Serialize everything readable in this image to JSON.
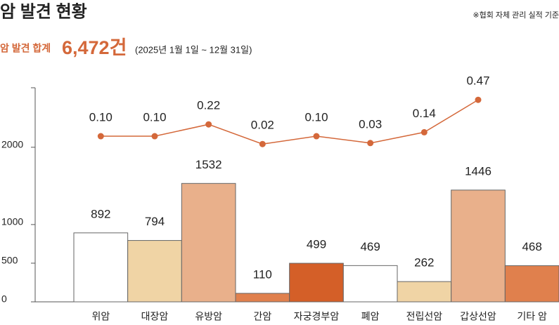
{
  "header": {
    "title": "암 발견 현황",
    "note": "※협회 자체 관리 실적 기준",
    "total_label": "암 발견 합계",
    "total_value": "6,472건",
    "period": "(2025년 1월 1일 ~ 12월 31일)"
  },
  "chart_data": {
    "type": "bar",
    "categories": [
      "위암",
      "대장암",
      "유방암",
      "간암",
      "자궁경부암",
      "폐암",
      "전립선암",
      "갑상선암",
      "기타 암"
    ],
    "values": [
      892,
      794,
      1532,
      110,
      499,
      469,
      262,
      1446,
      468
    ],
    "colors": [
      "#ffffff",
      "#f0d4a5",
      "#e9b08b",
      "#e0804d",
      "#d45f28",
      "#ffffff",
      "#f0d4a5",
      "#e9b08b",
      "#e0804d"
    ],
    "ylim": [
      0,
      2770
    ],
    "yticks": [
      0,
      500,
      1000,
      2000
    ],
    "y2lim": [
      -1.586,
      0.593
    ],
    "series": [
      {
        "type": "line",
        "axis": "y2",
        "color": "#d4683a",
        "values": [
          0.1,
          0.1,
          0.22,
          0.02,
          0.1,
          0.03,
          0.14,
          0.47,
          null
        ],
        "value_labels": [
          "0.10",
          "0.10",
          "0.22",
          "0.02",
          "0.10",
          "0.03",
          "0.14",
          "0.47",
          null
        ]
      }
    ]
  }
}
